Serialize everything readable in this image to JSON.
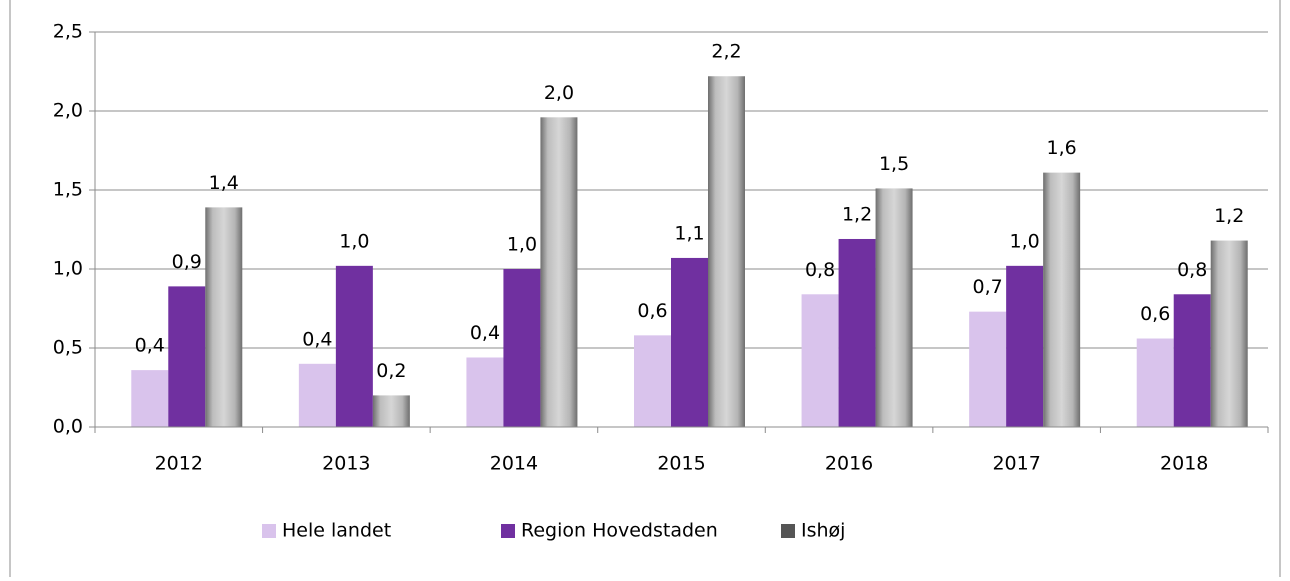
{
  "chart_data": {
    "type": "bar",
    "categories": [
      "2012",
      "2013",
      "2014",
      "2015",
      "2016",
      "2017",
      "2018"
    ],
    "series": [
      {
        "name": "Hele landet",
        "color": "#d9c3ec",
        "values": [
          0.36,
          0.4,
          0.44,
          0.58,
          0.84,
          0.73,
          0.56
        ],
        "value_labels": [
          "0,4",
          "0,4",
          "0,4",
          "0,6",
          "0,8",
          "0,7",
          "0,6"
        ]
      },
      {
        "name": "Region Hovedstaden",
        "color": "#7030a0",
        "values": [
          0.89,
          1.02,
          1.0,
          1.07,
          1.19,
          1.02,
          0.84
        ],
        "value_labels": [
          "0,9",
          "1,0",
          "1,0",
          "1,1",
          "1,2",
          "1,0",
          "0,8"
        ]
      },
      {
        "name": "Ishøj",
        "color": "#a6a6a6",
        "values": [
          1.39,
          0.2,
          1.96,
          2.22,
          1.51,
          1.61,
          1.18
        ],
        "value_labels": [
          "1,4",
          "0,2",
          "2,0",
          "2,2",
          "1,5",
          "1,6",
          "1,2"
        ]
      }
    ],
    "ylim": [
      0,
      2.5
    ],
    "yticks": [
      {
        "value": 0,
        "label": "0,0"
      },
      {
        "value": 0.5,
        "label": "0,5"
      },
      {
        "value": 1.0,
        "label": "1,0"
      },
      {
        "value": 1.5,
        "label": "1,5"
      },
      {
        "value": 2.0,
        "label": "2,0"
      },
      {
        "value": 2.5,
        "label": "2,5"
      }
    ],
    "grid": true,
    "legend": "bottom"
  }
}
